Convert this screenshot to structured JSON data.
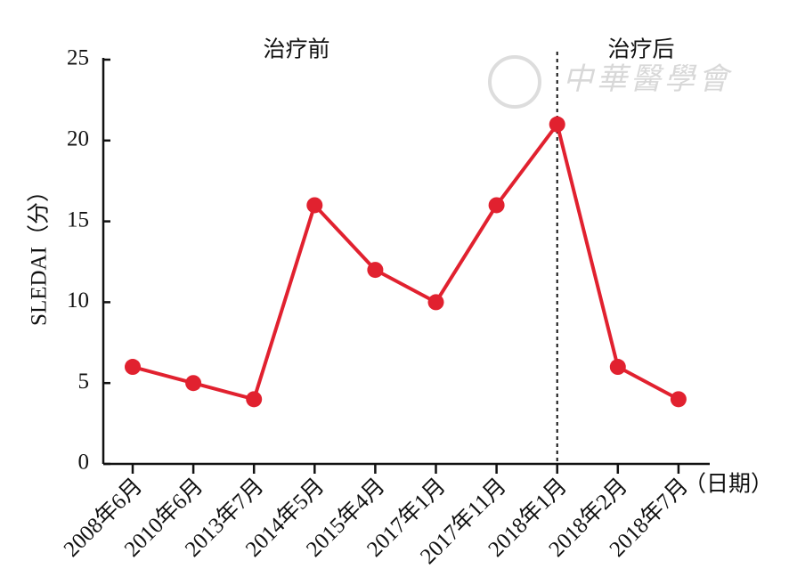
{
  "chart_data": {
    "type": "line",
    "y_label": "SLEDAI（分）",
    "x_unit": "（日期）",
    "annotations": [
      "治疗前",
      "治疗后"
    ],
    "watermark": "中華醫學會",
    "categories": [
      "2008年6月",
      "2010年6月",
      "2013年7月",
      "2014年5月",
      "2015年4月",
      "2017年1月",
      "2017年11月",
      "2018年1月",
      "2018年2月",
      "2018年7月"
    ],
    "series": [
      {
        "color": "#e1212f",
        "values": [
          6,
          5,
          4,
          16,
          12,
          10,
          16,
          21,
          6,
          4
        ]
      }
    ],
    "ylim": [
      0,
      25
    ],
    "yticks": [
      0,
      5,
      10,
      15,
      20,
      25
    ],
    "vline_at": 7,
    "grid": false
  }
}
